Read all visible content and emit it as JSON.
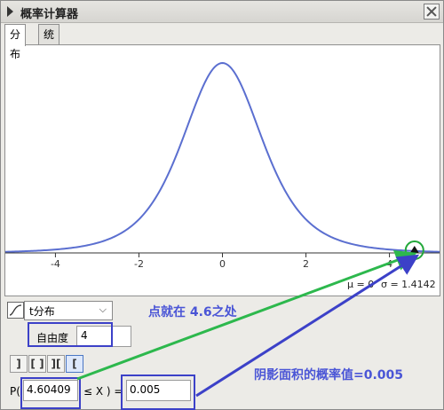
{
  "window": {
    "title": "概率计算器"
  },
  "tabs": [
    {
      "label": "分布",
      "active": true
    },
    {
      "label": "统计",
      "active": false
    }
  ],
  "plot": {
    "mu_label": "μ = 0",
    "sigma_label": "σ = 1.4142",
    "curve_color": "#5b6fd0",
    "x_ticks": [
      {
        "value": -4,
        "label": "-4"
      },
      {
        "value": -2,
        "label": "-2"
      },
      {
        "value": 0,
        "label": "0"
      },
      {
        "value": 2,
        "label": "2"
      },
      {
        "value": 4,
        "label": "4"
      }
    ],
    "point_x": 4.6,
    "xlim": [
      -5.2,
      5.2
    ],
    "degrees_of_freedom": 4
  },
  "controls": {
    "distribution": "t分布",
    "dof_label": "自由度",
    "dof_value": "4",
    "interval_buttons": [
      {
        "glyph": "]",
        "name": "left-sided-icon",
        "active": false
      },
      {
        "glyph": "[ ]",
        "name": "interval-icon",
        "active": false
      },
      {
        "glyph": "][",
        "name": "two-tailed-icon",
        "active": false
      },
      {
        "glyph": "[",
        "name": "right-sided-icon",
        "active": true
      }
    ],
    "p_label": "P(",
    "x_value": "4.60409",
    "relation": "≤ X )  =",
    "probability": "0.005"
  },
  "annotations": {
    "point_note": "点就在 4.6之处",
    "area_note": "阴影面积的概率值=0.005",
    "box_color": "#3c41c8",
    "green_arrow_color": "#2db84d",
    "circle_color": "#22a83a"
  }
}
